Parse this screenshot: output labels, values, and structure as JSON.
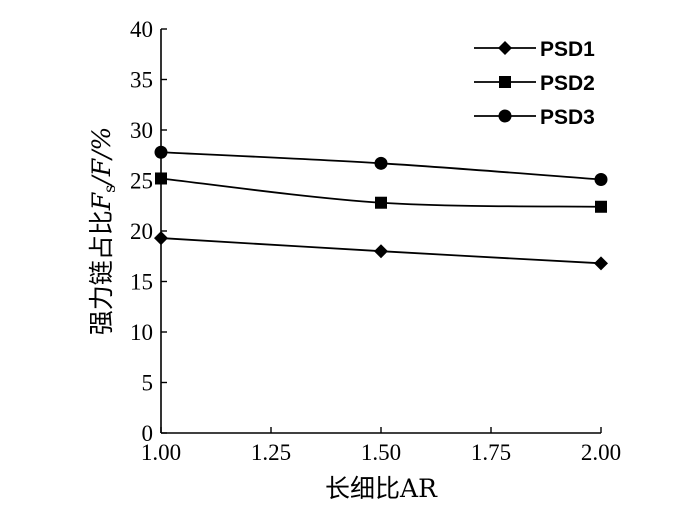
{
  "chart_data": {
    "type": "line",
    "x": [
      1.0,
      1.5,
      2.0
    ],
    "series": [
      {
        "name": "PSD1",
        "marker": "diamond",
        "values": [
          19.3,
          18.0,
          16.8
        ]
      },
      {
        "name": "PSD2",
        "marker": "square",
        "values": [
          25.2,
          22.8,
          22.4
        ]
      },
      {
        "name": "PSD3",
        "marker": "circle",
        "values": [
          27.8,
          26.7,
          25.1
        ]
      }
    ],
    "xlim": [
      1.0,
      2.0
    ],
    "ylim": [
      0,
      40
    ],
    "xticks": [
      "1.00",
      "1.25",
      "1.50",
      "1.75",
      "2.00"
    ],
    "yticks": [
      "0",
      "5",
      "10",
      "15",
      "20",
      "25",
      "30",
      "35",
      "40"
    ],
    "xlabel": "长细比AR",
    "ylabel": {
      "prefix": "强力链占比",
      "symbol": "F",
      "subscript": "s",
      "suffix": "/F/%"
    },
    "legend_position": "top-right",
    "grid": false,
    "line_color": "#000000"
  }
}
